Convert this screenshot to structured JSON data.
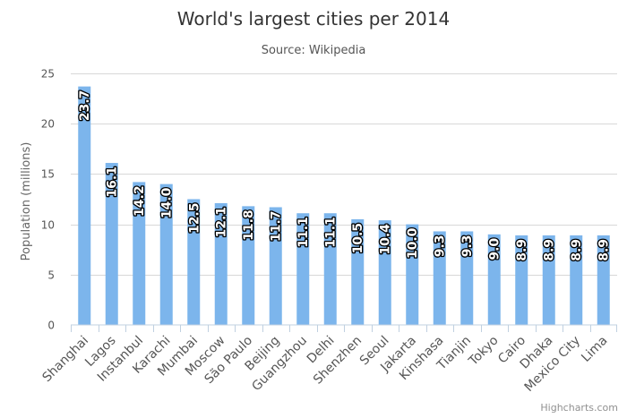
{
  "chart_data": {
    "type": "bar",
    "title": "World's largest cities per 2014",
    "subtitle": "Source: Wikipedia",
    "ylabel": "Population (millions)",
    "xlabel": "",
    "ylim": [
      0,
      25
    ],
    "yticks": [
      0,
      5,
      10,
      15,
      20,
      25
    ],
    "grid": true,
    "legend": "none",
    "bar_color": "#7cb5ec",
    "categories": [
      "Shanghai",
      "Lagos",
      "Instanbul",
      "Karachi",
      "Mumbai",
      "Moscow",
      "São Paulo",
      "Beijing",
      "Guangzhou",
      "Delhi",
      "Shenzhen",
      "Seoul",
      "Jakarta",
      "Kinshasa",
      "Tianjin",
      "Tokyo",
      "Cairo",
      "Dhaka",
      "Mexico City",
      "Lima"
    ],
    "values": [
      23.7,
      16.1,
      14.2,
      14.0,
      12.5,
      12.1,
      11.8,
      11.7,
      11.1,
      11.1,
      10.5,
      10.4,
      10.0,
      9.3,
      9.3,
      9.0,
      8.9,
      8.9,
      8.9,
      8.9
    ],
    "data_labels": [
      "23.7",
      "16.1",
      "14.2",
      "14.0",
      "12.5",
      "12.1",
      "11.8",
      "11.7",
      "11.1",
      "11.1",
      "10.5",
      "10.4",
      "10.0",
      "9.3",
      "9.3",
      "9.0",
      "8.9",
      "8.9",
      "8.9",
      "8.9"
    ]
  },
  "credits": "Highcharts.com"
}
